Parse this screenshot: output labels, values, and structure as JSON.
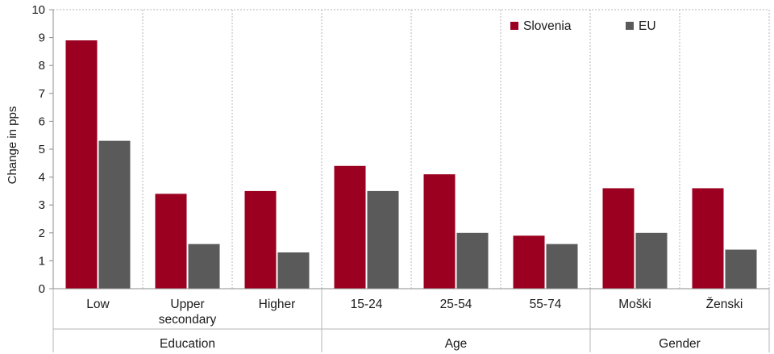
{
  "chart_data": {
    "type": "bar",
    "ylabel": "Change in pps",
    "ylim": [
      0,
      10
    ],
    "yticks": [
      0,
      1,
      2,
      3,
      4,
      5,
      6,
      7,
      8,
      9,
      10
    ],
    "grid": "dashed, vertical separators between categories",
    "legend_position": "top-right",
    "categories": [
      [
        "Low"
      ],
      [
        "Upper",
        "secondary"
      ],
      [
        "Higher"
      ],
      [
        "15-24"
      ],
      [
        "25-54"
      ],
      [
        "55-74"
      ],
      [
        "Moški"
      ],
      [
        "Ženski"
      ]
    ],
    "groups": [
      {
        "label": "Education",
        "span": [
          0,
          2
        ]
      },
      {
        "label": "Age",
        "span": [
          3,
          5
        ]
      },
      {
        "label": "Gender",
        "span": [
          6,
          7
        ]
      }
    ],
    "series": [
      {
        "name": "Slovenia",
        "color": "#9b0020",
        "values": [
          8.9,
          3.4,
          3.5,
          4.4,
          4.1,
          1.9,
          3.6,
          3.6
        ]
      },
      {
        "name": "EU",
        "color": "#5a5a5a",
        "values": [
          5.3,
          1.6,
          1.3,
          3.5,
          2.0,
          1.6,
          2.0,
          1.4
        ]
      }
    ]
  }
}
